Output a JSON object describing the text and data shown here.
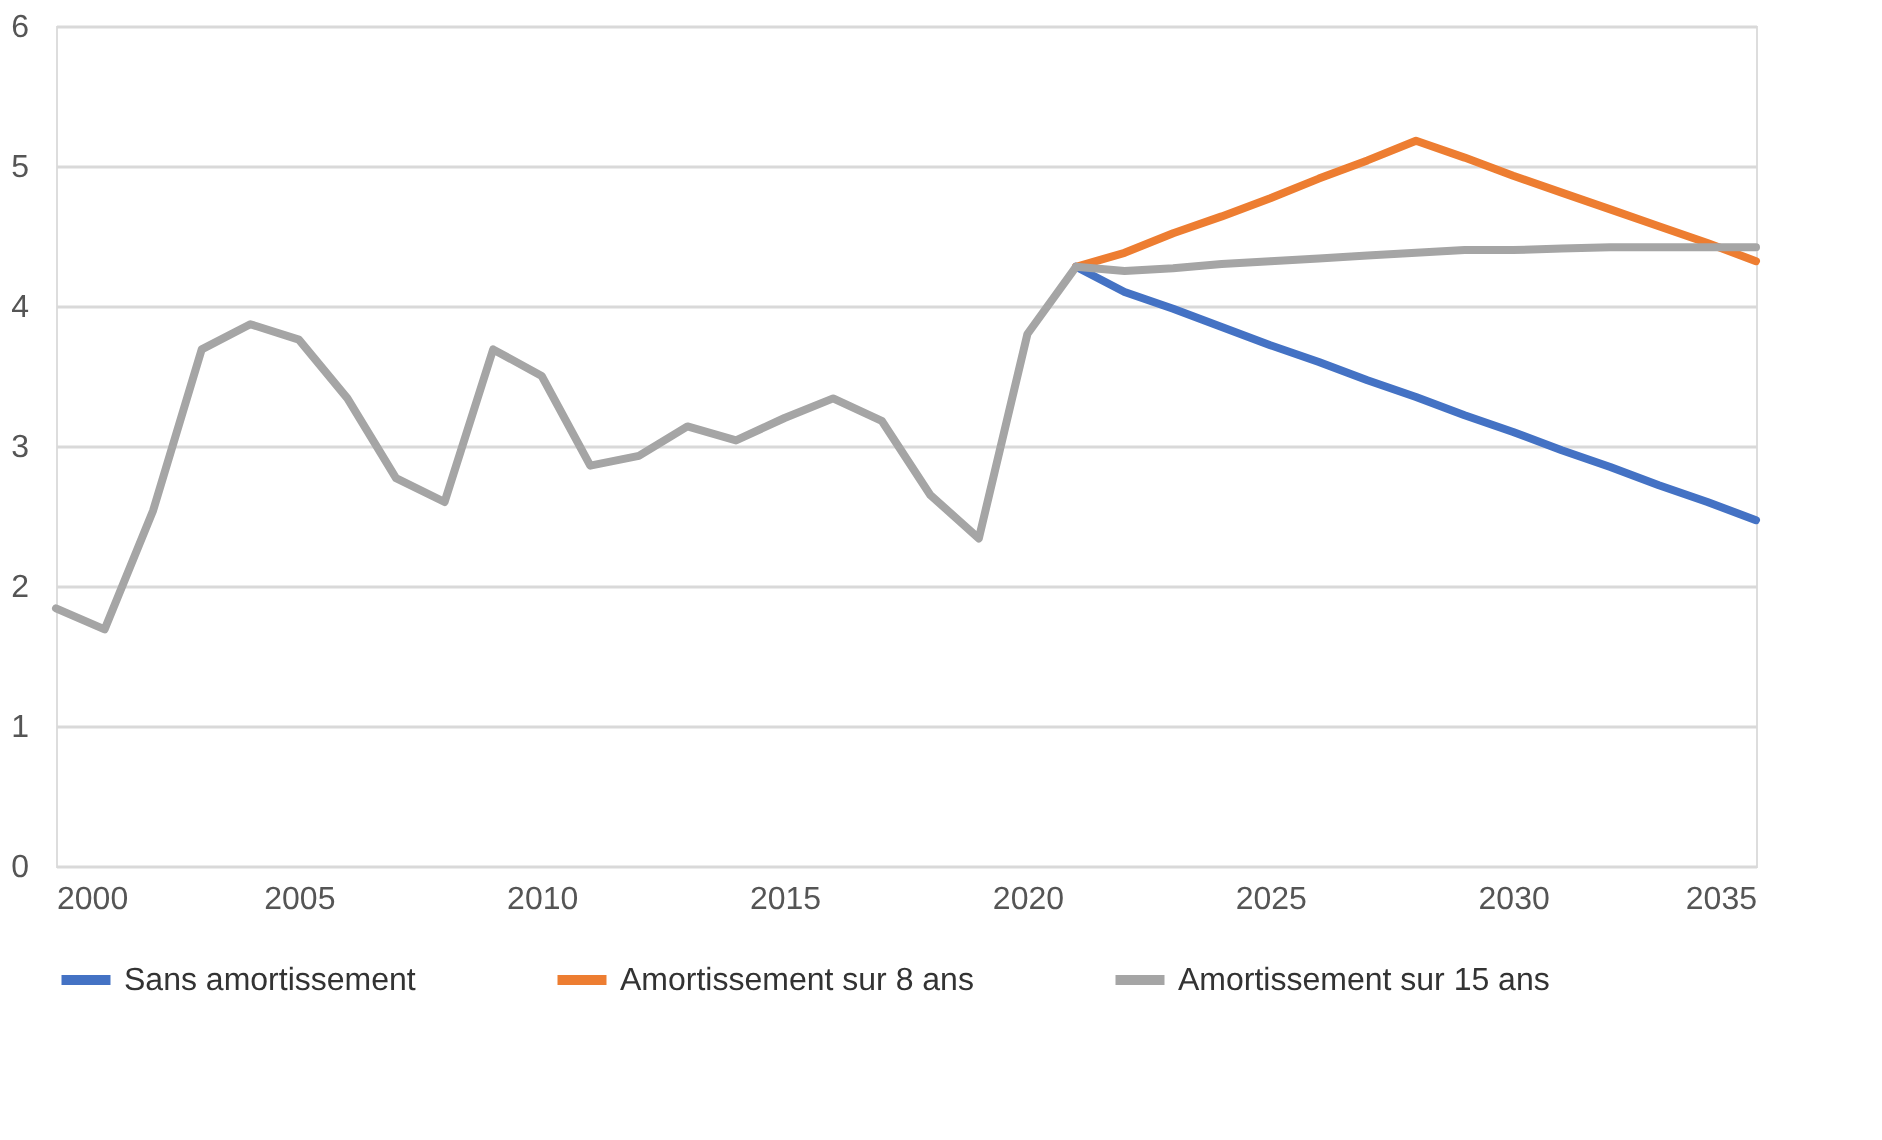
{
  "chart_data": {
    "type": "line",
    "xlim": [
      2000,
      2035
    ],
    "xticks": [
      2000,
      2005,
      2010,
      2015,
      2020,
      2025,
      2030,
      2035
    ],
    "ylim": [
      0,
      6
    ],
    "yticks": [
      0,
      1,
      2,
      3,
      4,
      5,
      6
    ],
    "grid": "y",
    "legend": "bottom",
    "line_style": "solid",
    "marker": "none",
    "series": [
      {
        "name": "Sans amortissement",
        "color": "#4472c4",
        "x": [
          2021,
          2022,
          2023,
          2024,
          2025,
          2026,
          2027,
          2028,
          2029,
          2030,
          2031,
          2032,
          2033,
          2034,
          2035
        ],
        "values": [
          4.28,
          4.1,
          3.98,
          3.85,
          3.72,
          3.6,
          3.47,
          3.35,
          3.22,
          3.1,
          2.97,
          2.85,
          2.72,
          2.6,
          2.47
        ]
      },
      {
        "name": "Amortissement sur 8 ans",
        "color": "#ed7d31",
        "x": [
          2021,
          2022,
          2023,
          2024,
          2025,
          2026,
          2027,
          2028,
          2029,
          2030,
          2031,
          2032,
          2033,
          2034,
          2035
        ],
        "values": [
          4.28,
          4.38,
          4.52,
          4.64,
          4.77,
          4.91,
          5.04,
          5.18,
          5.06,
          4.93,
          4.81,
          4.69,
          4.57,
          4.45,
          4.32
        ]
      },
      {
        "name": "Amortissement sur 15 ans",
        "color": "#a5a5a5",
        "x": [
          2000,
          2001,
          2002,
          2003,
          2004,
          2005,
          2006,
          2007,
          2008,
          2009,
          2010,
          2011,
          2012,
          2013,
          2014,
          2015,
          2016,
          2017,
          2018,
          2019,
          2020,
          2021,
          2022,
          2023,
          2024,
          2025,
          2026,
          2027,
          2028,
          2029,
          2030,
          2031,
          2032,
          2033,
          2034,
          2035
        ],
        "values": [
          1.84,
          1.69,
          2.54,
          3.69,
          3.87,
          3.76,
          3.34,
          2.77,
          2.6,
          3.69,
          3.5,
          2.86,
          2.93,
          3.14,
          3.04,
          3.2,
          3.34,
          3.18,
          2.65,
          2.34,
          3.8,
          4.28,
          4.25,
          4.27,
          4.3,
          4.32,
          4.34,
          4.36,
          4.38,
          4.4,
          4.4,
          4.41,
          4.42,
          4.42,
          4.42,
          4.42
        ]
      }
    ]
  }
}
